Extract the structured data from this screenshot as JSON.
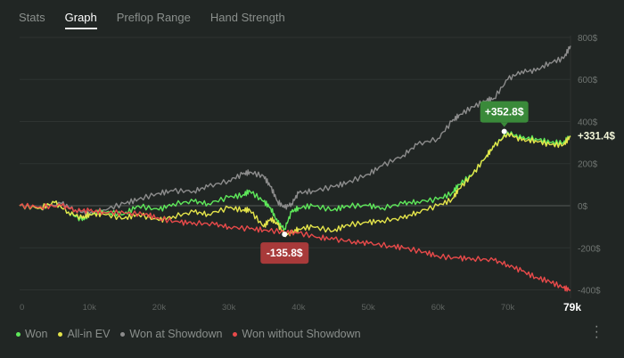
{
  "tabs": [
    {
      "label": "Stats"
    },
    {
      "label": "Graph",
      "active": true
    },
    {
      "label": "Preflop Range"
    },
    {
      "label": "Hand Strength"
    }
  ],
  "chart_data": {
    "type": "line",
    "xlim": [
      0,
      79000
    ],
    "ylim": [
      -420,
      820
    ],
    "x_ticks": [
      {
        "v": 0,
        "label": "0"
      },
      {
        "v": 10000,
        "label": "10k"
      },
      {
        "v": 20000,
        "label": "20k"
      },
      {
        "v": 30000,
        "label": "30k"
      },
      {
        "v": 40000,
        "label": "40k"
      },
      {
        "v": 50000,
        "label": "50k"
      },
      {
        "v": 60000,
        "label": "60k"
      },
      {
        "v": 70000,
        "label": "70k"
      }
    ],
    "x_end_label": "79k",
    "y_ticks": [
      {
        "v": 800,
        "label": "800$"
      },
      {
        "v": 600,
        "label": "600$"
      },
      {
        "v": 400,
        "label": "400$"
      },
      {
        "v": 200,
        "label": "200$"
      },
      {
        "v": 0,
        "label": "0$"
      },
      {
        "v": -200,
        "label": "-200$"
      },
      {
        "v": -400,
        "label": "-400$"
      }
    ],
    "grid": true,
    "legend_position": "bottom-left",
    "series": [
      {
        "name": "Won at Showdown",
        "color": "#8c8c8c",
        "x": [
          0,
          3,
          6,
          8,
          10,
          12,
          15,
          17,
          20,
          22,
          25,
          27,
          30,
          32,
          33,
          35,
          36,
          37,
          38,
          39,
          40,
          42,
          45,
          47,
          50,
          52,
          55,
          57,
          60,
          62,
          63,
          65,
          67,
          68,
          70,
          72,
          74,
          76,
          78,
          79
        ],
        "y": [
          0,
          -10,
          10,
          -20,
          -40,
          -20,
          10,
          30,
          60,
          70,
          70,
          90,
          120,
          150,
          160,
          140,
          90,
          20,
          -10,
          10,
          60,
          70,
          90,
          110,
          150,
          190,
          240,
          290,
          320,
          400,
          430,
          470,
          500,
          510,
          600,
          640,
          640,
          680,
          700,
          760
        ]
      },
      {
        "name": "Won",
        "color": "#5ee85a",
        "x": [
          0,
          3,
          5,
          7,
          9,
          10,
          12,
          15,
          17,
          20,
          22,
          25,
          27,
          30,
          32,
          33,
          35,
          36,
          37,
          38,
          39,
          40,
          42,
          45,
          47,
          50,
          52,
          55,
          57,
          60,
          62,
          63,
          65,
          67,
          68,
          70,
          72,
          74,
          76,
          78,
          79
        ],
        "y": [
          0,
          -10,
          15,
          -30,
          -70,
          -40,
          -30,
          -40,
          0,
          -20,
          10,
          20,
          10,
          40,
          50,
          70,
          20,
          -10,
          -80,
          -110,
          -30,
          -10,
          0,
          -20,
          0,
          0,
          -10,
          10,
          20,
          30,
          60,
          100,
          150,
          240,
          280,
          350,
          320,
          320,
          300,
          300,
          331.4
        ]
      },
      {
        "name": "All-in EV",
        "color": "#e4e44a",
        "x": [
          0,
          3,
          5,
          7,
          9,
          10,
          12,
          15,
          17,
          20,
          22,
          25,
          27,
          30,
          32,
          33,
          35,
          36,
          37,
          38,
          39,
          40,
          42,
          45,
          47,
          50,
          52,
          55,
          57,
          60,
          62,
          63,
          65,
          67,
          68,
          70,
          72,
          74,
          76,
          78,
          79
        ],
        "y": [
          0,
          -10,
          15,
          -30,
          -60,
          -40,
          -40,
          -60,
          -40,
          -70,
          -50,
          -30,
          -40,
          -10,
          -20,
          -20,
          -100,
          -60,
          -90,
          -135.8,
          -130,
          -110,
          -100,
          -120,
          -90,
          -80,
          -70,
          -60,
          -30,
          0,
          30,
          80,
          150,
          240,
          280,
          345,
          310,
          310,
          290,
          290,
          331.4
        ]
      },
      {
        "name": "Won without Showdown",
        "color": "#e84a4a",
        "x": [
          0,
          3,
          6,
          8,
          10,
          12,
          15,
          18,
          20,
          23,
          25,
          28,
          30,
          33,
          35,
          38,
          40,
          43,
          45,
          48,
          50,
          53,
          55,
          58,
          60,
          63,
          65,
          68,
          70,
          72,
          74,
          76,
          78,
          79
        ],
        "y": [
          0,
          -5,
          0,
          -20,
          -25,
          -30,
          -35,
          -40,
          -60,
          -80,
          -80,
          -90,
          -100,
          -110,
          -115,
          -125,
          -130,
          -150,
          -160,
          -170,
          -180,
          -190,
          -200,
          -220,
          -240,
          -250,
          -250,
          -260,
          -280,
          -310,
          -340,
          -360,
          -390,
          -400
        ]
      }
    ],
    "annotations": [
      {
        "label": "+352.8$",
        "x": 69500,
        "y": 352.8,
        "color": "#3a8a3a"
      },
      {
        "label": "-135.8$",
        "x": 38000,
        "y": -135.8,
        "color": "#a83a3a"
      }
    ],
    "end_value_label": "+331.4$"
  },
  "legend": [
    {
      "label": "Won",
      "color": "#5ee85a"
    },
    {
      "label": "All-in EV",
      "color": "#e4e44a"
    },
    {
      "label": "Won at Showdown",
      "color": "#8c8c8c"
    },
    {
      "label": "Won without Showdown",
      "color": "#e84a4a"
    }
  ],
  "menu_icon": "more-vertical-icon"
}
